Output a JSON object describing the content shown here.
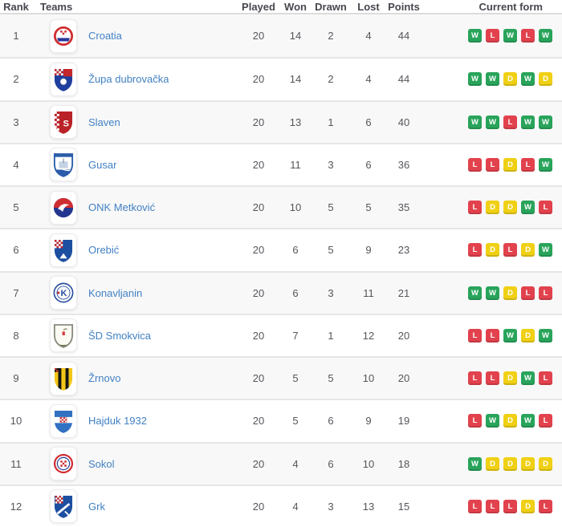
{
  "table": {
    "columns": [
      "Rank",
      "Teams",
      "Played",
      "Won",
      "Drawn",
      "Lost",
      "Points",
      "Current form"
    ],
    "form_colors": {
      "W": "#29a45b",
      "D": "#f0d014",
      "L": "#e2424d"
    },
    "link_color": "#4281c3",
    "rows": [
      {
        "rank": "1",
        "team": "Croatia",
        "crest": "croatia",
        "played": "20",
        "won": "14",
        "drawn": "2",
        "lost": "4",
        "points": "44",
        "form": [
          "W",
          "L",
          "W",
          "L",
          "W"
        ]
      },
      {
        "rank": "2",
        "team": "Župa dubrovačka",
        "crest": "zupa",
        "played": "20",
        "won": "14",
        "drawn": "2",
        "lost": "4",
        "points": "44",
        "form": [
          "W",
          "W",
          "D",
          "W",
          "D"
        ]
      },
      {
        "rank": "3",
        "team": "Slaven",
        "crest": "slaven",
        "played": "20",
        "won": "13",
        "drawn": "1",
        "lost": "6",
        "points": "40",
        "form": [
          "W",
          "W",
          "L",
          "W",
          "W"
        ]
      },
      {
        "rank": "4",
        "team": "Gusar",
        "crest": "gusar",
        "played": "20",
        "won": "11",
        "drawn": "3",
        "lost": "6",
        "points": "36",
        "form": [
          "L",
          "L",
          "D",
          "L",
          "W"
        ]
      },
      {
        "rank": "5",
        "team": "ONK Metković",
        "crest": "onk",
        "played": "20",
        "won": "10",
        "drawn": "5",
        "lost": "5",
        "points": "35",
        "form": [
          "L",
          "D",
          "D",
          "W",
          "L"
        ]
      },
      {
        "rank": "6",
        "team": "Orebić",
        "crest": "orebic",
        "played": "20",
        "won": "6",
        "drawn": "5",
        "lost": "9",
        "points": "23",
        "form": [
          "L",
          "D",
          "L",
          "D",
          "W"
        ]
      },
      {
        "rank": "7",
        "team": "Konavljanin",
        "crest": "konavljanin",
        "played": "20",
        "won": "6",
        "drawn": "3",
        "lost": "11",
        "points": "21",
        "form": [
          "W",
          "W",
          "D",
          "L",
          "L"
        ]
      },
      {
        "rank": "8",
        "team": "ŠD Smokvica",
        "crest": "smokvica",
        "played": "20",
        "won": "7",
        "drawn": "1",
        "lost": "12",
        "points": "20",
        "form": [
          "L",
          "L",
          "W",
          "D",
          "W"
        ]
      },
      {
        "rank": "9",
        "team": "Žrnovo",
        "crest": "zrnovo",
        "played": "20",
        "won": "5",
        "drawn": "5",
        "lost": "10",
        "points": "20",
        "form": [
          "L",
          "L",
          "D",
          "W",
          "L"
        ]
      },
      {
        "rank": "10",
        "team": "Hajduk 1932",
        "crest": "hajduk",
        "played": "20",
        "won": "5",
        "drawn": "6",
        "lost": "9",
        "points": "19",
        "form": [
          "L",
          "W",
          "D",
          "W",
          "L"
        ]
      },
      {
        "rank": "11",
        "team": "Sokol",
        "crest": "sokol",
        "played": "20",
        "won": "4",
        "drawn": "6",
        "lost": "10",
        "points": "18",
        "form": [
          "W",
          "D",
          "D",
          "D",
          "D"
        ]
      },
      {
        "rank": "12",
        "team": "Grk",
        "crest": "grk",
        "played": "20",
        "won": "4",
        "drawn": "3",
        "lost": "13",
        "points": "15",
        "form": [
          "L",
          "L",
          "L",
          "D",
          "L"
        ]
      }
    ]
  }
}
